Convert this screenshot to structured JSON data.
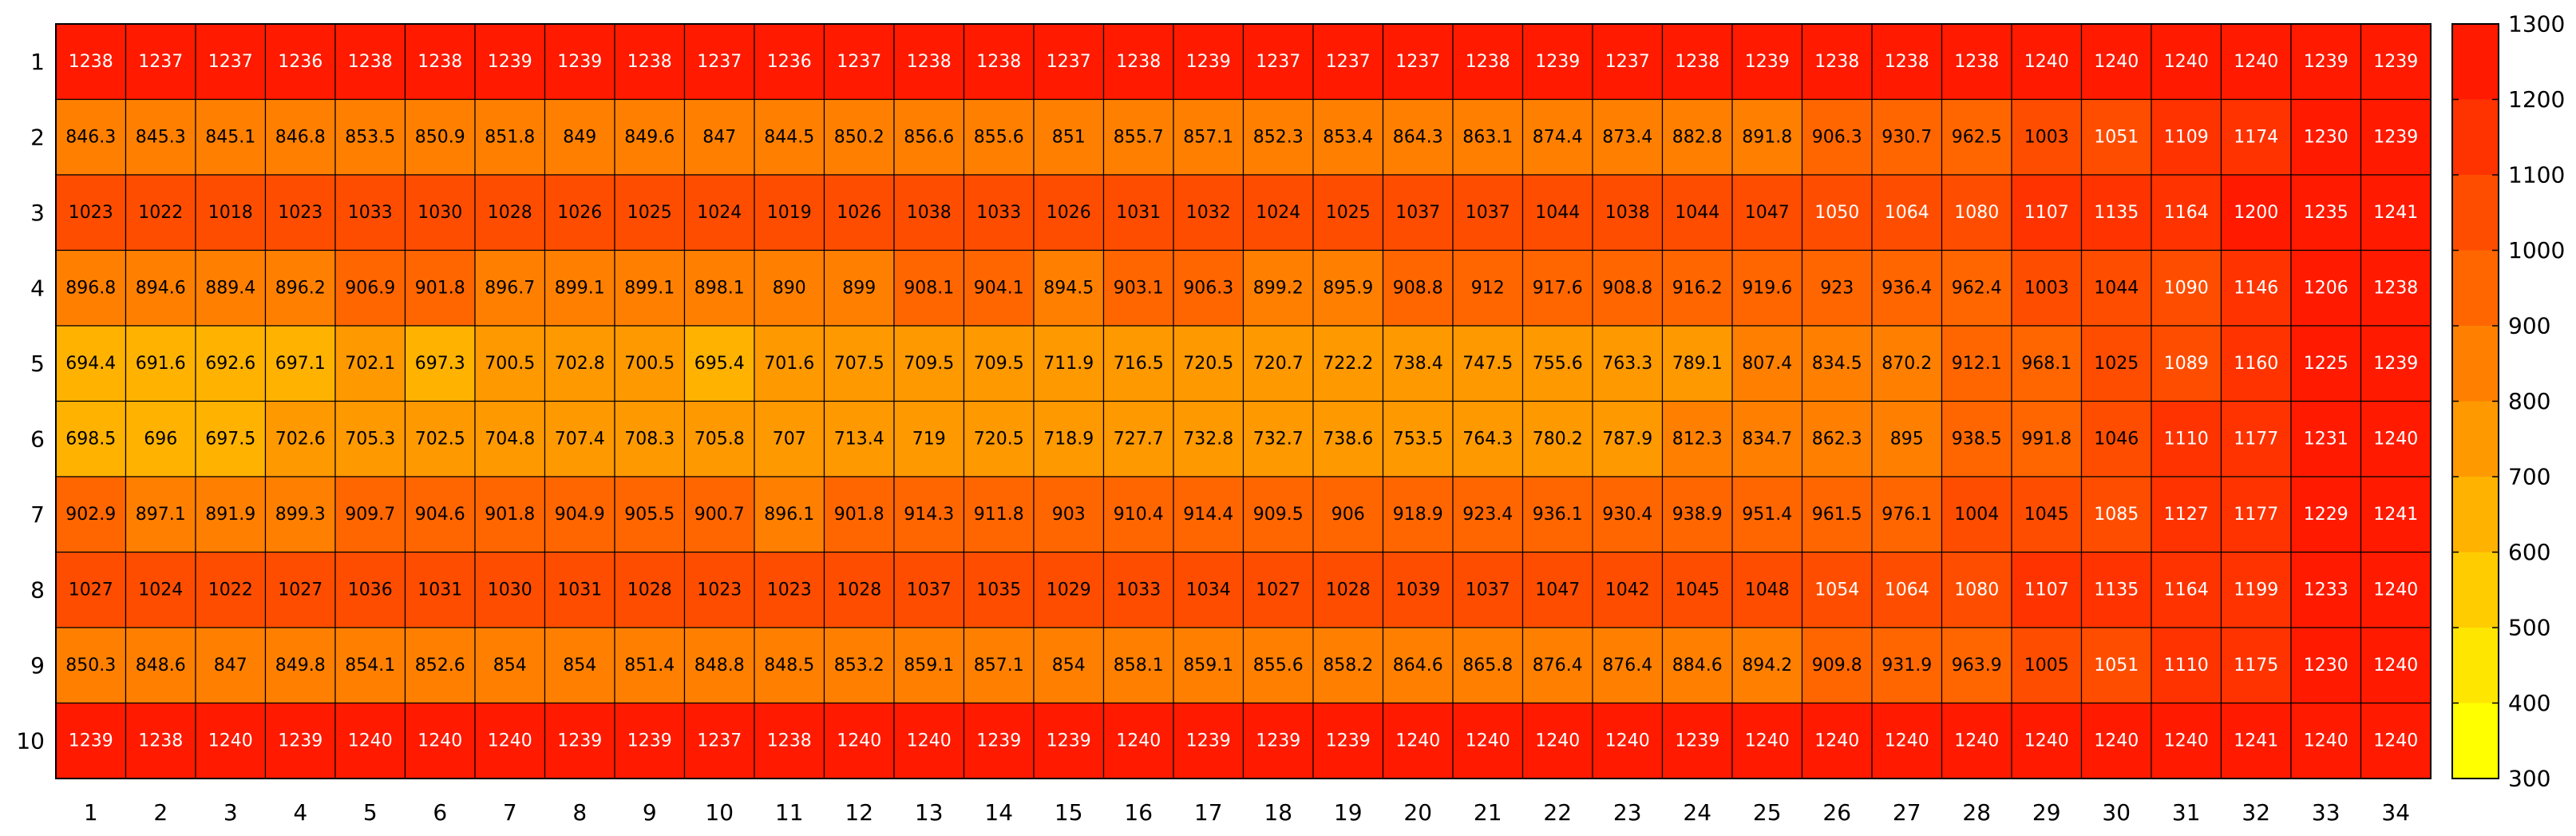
{
  "chart_data": {
    "type": "heatmap",
    "title": "",
    "xlabel": "",
    "ylabel": "",
    "x_categories": [
      "1",
      "2",
      "3",
      "4",
      "5",
      "6",
      "7",
      "8",
      "9",
      "10",
      "11",
      "12",
      "13",
      "14",
      "15",
      "16",
      "17",
      "18",
      "19",
      "20",
      "21",
      "22",
      "23",
      "24",
      "25",
      "26",
      "27",
      "28",
      "29",
      "30",
      "31",
      "32",
      "33",
      "34"
    ],
    "y_categories": [
      "1",
      "2",
      "3",
      "4",
      "5",
      "6",
      "7",
      "8",
      "9",
      "10"
    ],
    "colorbar": {
      "min": 300,
      "max": 1300,
      "ticks": [
        "300",
        "400",
        "500",
        "600",
        "700",
        "800",
        "900",
        "1000",
        "1100",
        "1200",
        "1300"
      ],
      "colors": [
        "#FFFF00",
        "#FFE600",
        "#FFCC00",
        "#FFB300",
        "#FF9900",
        "#FF8000",
        "#FF6600",
        "#FF4D00",
        "#FF3300",
        "#FF1A00"
      ]
    },
    "labels": [
      [
        "1238",
        "1237",
        "1237",
        "1236",
        "1238",
        "1238",
        "1239",
        "1239",
        "1238",
        "1237",
        "1236",
        "1237",
        "1238",
        "1238",
        "1237",
        "1238",
        "1239",
        "1237",
        "1237",
        "1237",
        "1238",
        "1239",
        "1237",
        "1238",
        "1239",
        "1238",
        "1238",
        "1238",
        "1240",
        "1240",
        "1240",
        "1240",
        "1239",
        "1239"
      ],
      [
        "846.3",
        "845.3",
        "845.1",
        "846.8",
        "853.5",
        "850.9",
        "851.8",
        "849",
        "849.6",
        "847",
        "844.5",
        "850.2",
        "856.6",
        "855.6",
        "851",
        "855.7",
        "857.1",
        "852.3",
        "853.4",
        "864.3",
        "863.1",
        "874.4",
        "873.4",
        "882.8",
        "891.8",
        "906.3",
        "930.7",
        "962.5",
        "1003",
        "1051",
        "1109",
        "1174",
        "1230",
        "1239"
      ],
      [
        "1023",
        "1022",
        "1018",
        "1023",
        "1033",
        "1030",
        "1028",
        "1026",
        "1025",
        "1024",
        "1019",
        "1026",
        "1038",
        "1033",
        "1026",
        "1031",
        "1032",
        "1024",
        "1025",
        "1037",
        "1037",
        "1044",
        "1038",
        "1044",
        "1047",
        "1050",
        "1064",
        "1080",
        "1107",
        "1135",
        "1164",
        "1200",
        "1235",
        "1241"
      ],
      [
        "896.8",
        "894.6",
        "889.4",
        "896.2",
        "906.9",
        "901.8",
        "896.7",
        "899.1",
        "899.1",
        "898.1",
        "890",
        "899",
        "908.1",
        "904.1",
        "894.5",
        "903.1",
        "906.3",
        "899.2",
        "895.9",
        "908.8",
        "912",
        "917.6",
        "908.8",
        "916.2",
        "919.6",
        "923",
        "936.4",
        "962.4",
        "1003",
        "1044",
        "1090",
        "1146",
        "1206",
        "1238"
      ],
      [
        "694.4",
        "691.6",
        "692.6",
        "697.1",
        "702.1",
        "697.3",
        "700.5",
        "702.8",
        "700.5",
        "695.4",
        "701.6",
        "707.5",
        "709.5",
        "709.5",
        "711.9",
        "716.5",
        "720.5",
        "720.7",
        "722.2",
        "738.4",
        "747.5",
        "755.6",
        "763.3",
        "789.1",
        "807.4",
        "834.5",
        "870.2",
        "912.1",
        "968.1",
        "1025",
        "1089",
        "1160",
        "1225",
        "1239"
      ],
      [
        "698.5",
        "696",
        "697.5",
        "702.6",
        "705.3",
        "702.5",
        "704.8",
        "707.4",
        "708.3",
        "705.8",
        "707",
        "713.4",
        "719",
        "720.5",
        "718.9",
        "727.7",
        "732.8",
        "732.7",
        "738.6",
        "753.5",
        "764.3",
        "780.2",
        "787.9",
        "812.3",
        "834.7",
        "862.3",
        "895",
        "938.5",
        "991.8",
        "1046",
        "1110",
        "1177",
        "1231",
        "1240"
      ],
      [
        "902.9",
        "897.1",
        "891.9",
        "899.3",
        "909.7",
        "904.6",
        "901.8",
        "904.9",
        "905.5",
        "900.7",
        "896.1",
        "901.8",
        "914.3",
        "911.8",
        "903",
        "910.4",
        "914.4",
        "909.5",
        "906",
        "918.9",
        "923.4",
        "936.1",
        "930.4",
        "938.9",
        "951.4",
        "961.5",
        "976.1",
        "1004",
        "1045",
        "1085",
        "1127",
        "1177",
        "1229",
        "1241"
      ],
      [
        "1027",
        "1024",
        "1022",
        "1027",
        "1036",
        "1031",
        "1030",
        "1031",
        "1028",
        "1023",
        "1023",
        "1028",
        "1037",
        "1035",
        "1029",
        "1033",
        "1034",
        "1027",
        "1028",
        "1039",
        "1037",
        "1047",
        "1042",
        "1045",
        "1048",
        "1054",
        "1064",
        "1080",
        "1107",
        "1135",
        "1164",
        "1199",
        "1233",
        "1240"
      ],
      [
        "850.3",
        "848.6",
        "847",
        "849.8",
        "854.1",
        "852.6",
        "854",
        "854",
        "851.4",
        "848.8",
        "848.5",
        "853.2",
        "859.1",
        "857.1",
        "854",
        "858.1",
        "859.1",
        "855.6",
        "858.2",
        "864.6",
        "865.8",
        "876.4",
        "876.4",
        "884.6",
        "894.2",
        "909.8",
        "931.9",
        "963.9",
        "1005",
        "1051",
        "1110",
        "1175",
        "1230",
        "1240"
      ],
      [
        "1239",
        "1238",
        "1240",
        "1239",
        "1240",
        "1240",
        "1240",
        "1239",
        "1239",
        "1237",
        "1238",
        "1240",
        "1240",
        "1239",
        "1239",
        "1240",
        "1239",
        "1239",
        "1239",
        "1240",
        "1240",
        "1240",
        "1240",
        "1239",
        "1240",
        "1240",
        "1240",
        "1240",
        "1240",
        "1240",
        "1240",
        "1241",
        "1240",
        "1240"
      ]
    ]
  }
}
